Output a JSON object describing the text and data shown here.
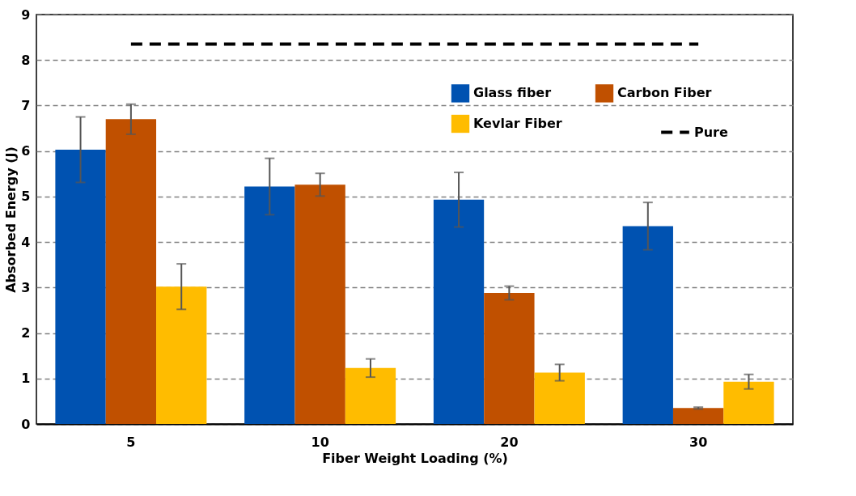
{
  "chart_data": {
    "type": "bar",
    "xlabel": "Fiber Weight Loading (%)",
    "ylabel": "Absorbed Energy (J)",
    "categories": [
      "5",
      "10",
      "20",
      "30"
    ],
    "series": [
      {
        "name": "Glass fiber",
        "color": "#0052b1",
        "values": [
          6.03,
          5.22,
          4.93,
          4.35
        ],
        "errors": [
          0.72,
          0.62,
          0.6,
          0.52
        ]
      },
      {
        "name": "Carbon Fiber",
        "color": "#c05000",
        "values": [
          6.7,
          5.26,
          2.88,
          0.35
        ],
        "errors": [
          0.33,
          0.25,
          0.15,
          0.02
        ]
      },
      {
        "name": "Kevlar Fiber",
        "color": "#ffbc00",
        "values": [
          3.02,
          1.23,
          1.13,
          0.93
        ],
        "errors": [
          0.5,
          0.2,
          0.18,
          0.16
        ]
      },
      {
        "name": "Pure",
        "type": "line",
        "color": "#000000",
        "line_style": "dashed",
        "marker": "none",
        "values": [
          8.35,
          8.35,
          8.35,
          8.35
        ]
      }
    ],
    "ylim": [
      0,
      9
    ],
    "yticks": [
      0,
      1,
      2,
      3,
      4,
      5,
      6,
      7,
      8,
      9
    ],
    "grid": "y",
    "legend": "top right"
  }
}
